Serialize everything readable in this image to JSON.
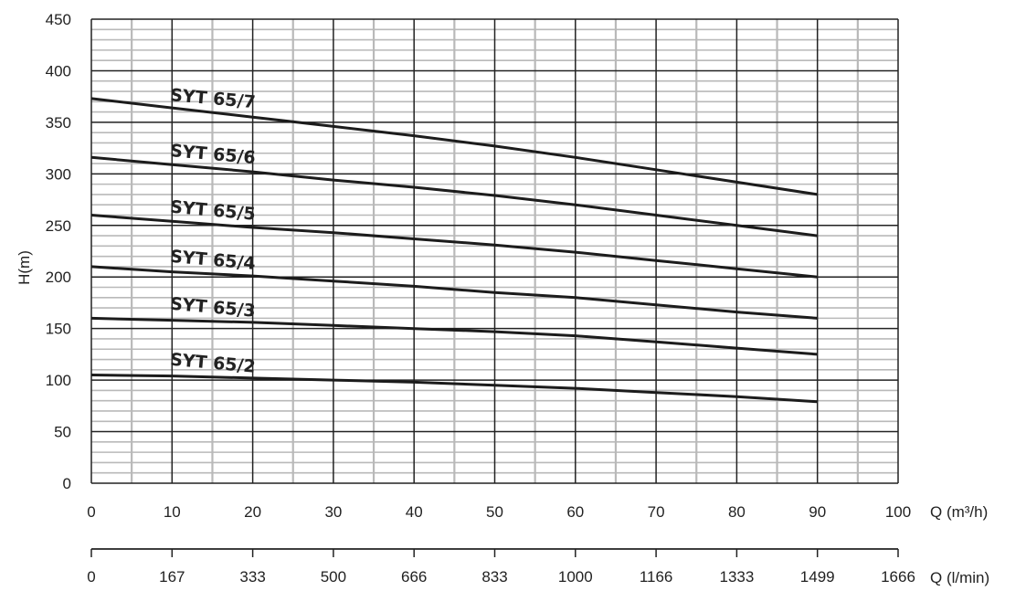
{
  "chart_data": {
    "type": "line",
    "xlabel": "Q (m³/h)",
    "x2label": "Q (l/min)",
    "ylabel": "H(m)",
    "xlim": [
      0,
      100
    ],
    "ylim": [
      0,
      450
    ],
    "x_ticks": [
      0,
      10,
      20,
      30,
      40,
      50,
      60,
      70,
      80,
      90,
      100
    ],
    "x2_ticks": [
      "0",
      "167",
      "333",
      "500",
      "666",
      "833",
      "1000",
      "1166",
      "1333",
      "1499",
      "1666"
    ],
    "y_ticks": [
      0,
      50,
      100,
      150,
      200,
      250,
      300,
      350,
      400,
      450
    ],
    "grid": true,
    "series": [
      {
        "name": "SYT 65/7",
        "x": [
          0,
          10,
          20,
          30,
          40,
          50,
          60,
          70,
          80,
          90
        ],
        "y": [
          373,
          364,
          355,
          346,
          337,
          327,
          316,
          304,
          292,
          280
        ]
      },
      {
        "name": "SYT 65/6",
        "x": [
          0,
          10,
          20,
          30,
          40,
          50,
          60,
          70,
          80,
          90
        ],
        "y": [
          316,
          309,
          302,
          294,
          287,
          279,
          270,
          260,
          250,
          240
        ]
      },
      {
        "name": "SYT 65/5",
        "x": [
          0,
          10,
          20,
          30,
          40,
          50,
          60,
          70,
          80,
          90
        ],
        "y": [
          260,
          254,
          248,
          243,
          237,
          231,
          224,
          216,
          208,
          200
        ]
      },
      {
        "name": "SYT 65/4",
        "x": [
          0,
          10,
          20,
          30,
          40,
          50,
          60,
          70,
          80,
          90
        ],
        "y": [
          210,
          205,
          201,
          196,
          191,
          185,
          180,
          173,
          166,
          160
        ]
      },
      {
        "name": "SYT 65/3",
        "x": [
          0,
          10,
          20,
          30,
          40,
          50,
          60,
          70,
          80,
          90
        ],
        "y": [
          160,
          158,
          156,
          153,
          150,
          147,
          143,
          137,
          131,
          125
        ]
      },
      {
        "name": "SYT 65/2",
        "x": [
          0,
          10,
          20,
          30,
          40,
          50,
          60,
          70,
          80,
          90
        ],
        "y": [
          105,
          104,
          102,
          100,
          98,
          95,
          92,
          88,
          84,
          79
        ]
      }
    ]
  }
}
